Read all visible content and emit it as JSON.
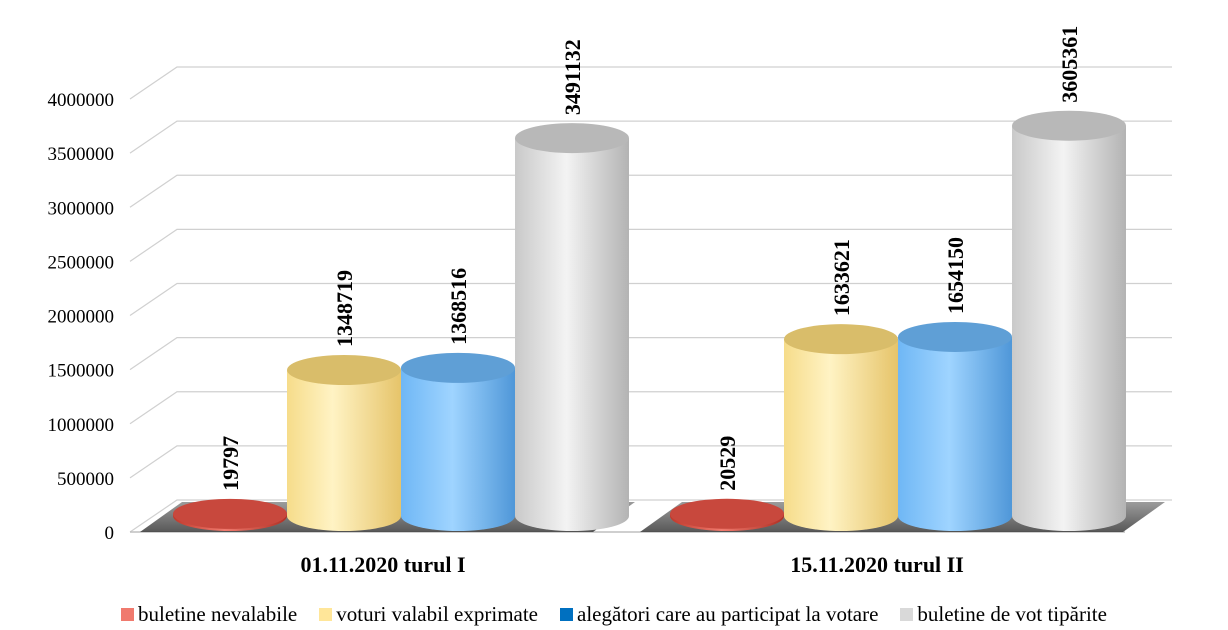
{
  "chart_data": {
    "type": "bar",
    "style": "3d-cylinder",
    "categories": [
      "01.11.2020 turul I",
      "15.11.2020 turul II"
    ],
    "series": [
      {
        "name": "buletine nevalabile",
        "color": "#e8564b",
        "values": [
          19797,
          20529
        ]
      },
      {
        "name": "voturi valabil exprimate",
        "color": "#ffe699",
        "values": [
          1348719,
          1633621
        ]
      },
      {
        "name": "alegători care au participat la votare",
        "color": "#0070c0",
        "values": [
          1368516,
          1654150
        ]
      },
      {
        "name": "buletine de vot tipărite",
        "color": "#d9d9d9",
        "values": [
          3491132,
          3605361
        ]
      }
    ],
    "ylim": [
      0,
      4000000
    ],
    "yticks": [
      0,
      500000,
      1000000,
      1500000,
      2000000,
      2500000,
      3000000,
      3500000,
      4000000
    ],
    "grid": true,
    "legend_position": "bottom",
    "title": "",
    "xlabel": "",
    "ylabel": ""
  }
}
